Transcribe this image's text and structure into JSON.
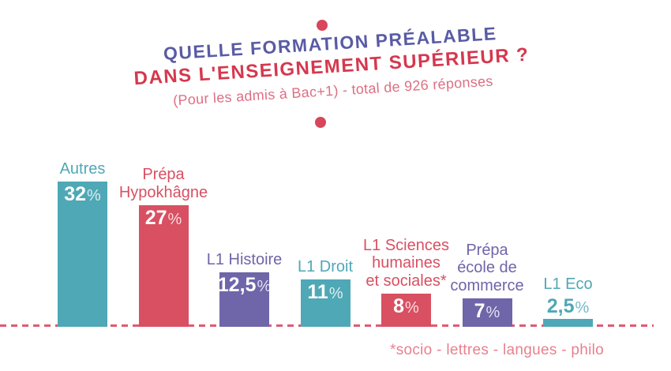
{
  "header": {
    "title_line1": "QUELLE FORMATION PRÉALABLE",
    "title_line2": "DANS L'ENSEIGNEMENT SUPÉRIEUR ?",
    "subtitle": "(Pour les admis à Bac+1) - total de 926 réponses"
  },
  "colors": {
    "teal": "#4FA8B5",
    "red": "#D85062",
    "purple": "#6F65A9",
    "title_indigo": "#5A5BA5",
    "title_red": "#D5384F",
    "subtitle_pink": "#DD6F83",
    "footnote_pink": "#E8808F",
    "dot_red": "#D8465C",
    "dash_pink": "#E05A72"
  },
  "chart_data": {
    "type": "bar",
    "title": "QUELLE FORMATION PRÉALABLE DANS L'ENSEIGNEMENT SUPÉRIEUR ?",
    "subtitle": "(Pour les admis à Bac+1) - total de 926 réponses",
    "total_responses": 926,
    "unit": "%",
    "ylim": [
      0,
      35
    ],
    "grid": false,
    "baseline": "dashed",
    "legend": "none",
    "categories": [
      "Autres",
      "Prépa Hypokhâgne",
      "L1 Histoire",
      "L1 Droit",
      "L1 Sciences humaines et sociales*",
      "Prépa école de commerce",
      "L1 Eco"
    ],
    "values": [
      32,
      27,
      12.5,
      11,
      8,
      7,
      2.5
    ],
    "bars": [
      {
        "label_lines": [
          "Autres"
        ],
        "value": 32,
        "value_label": "32",
        "color": "teal",
        "value_position": "inside"
      },
      {
        "label_lines": [
          "Prépa",
          "Hypokhâgne"
        ],
        "value": 27,
        "value_label": "27",
        "color": "red",
        "value_position": "inside"
      },
      {
        "label_lines": [
          "L1 Histoire"
        ],
        "value": 12.5,
        "value_label": "12,5",
        "color": "purple",
        "value_position": "inside"
      },
      {
        "label_lines": [
          "L1 Droit"
        ],
        "value": 11,
        "value_label": "11",
        "color": "teal",
        "value_position": "inside"
      },
      {
        "label_lines": [
          "L1 Sciences",
          "humaines",
          "et sociales*"
        ],
        "value": 8,
        "value_label": "8",
        "color": "red",
        "value_position": "inside"
      },
      {
        "label_lines": [
          "Prépa",
          "école de",
          "commerce"
        ],
        "value": 7,
        "value_label": "7",
        "color": "purple",
        "value_position": "inside"
      },
      {
        "label_lines": [
          "L1 Eco"
        ],
        "value": 2.5,
        "value_label": "2,5",
        "color": "teal",
        "value_position": "above"
      }
    ],
    "footnote": "*socio - lettres - langues - philo"
  }
}
